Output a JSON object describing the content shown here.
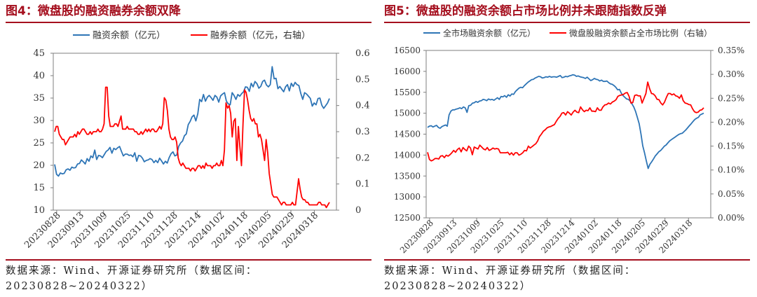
{
  "source": {
    "line1": "数据来源：Wind、开源证券研究所（数据区间：",
    "line2": "20230828~20240322）"
  },
  "chart_data": [
    {
      "type": "line",
      "title": "图4：微盘股的融资融券余额双降",
      "left_axis": {
        "min": 10,
        "max": 45,
        "ticks": [
          10,
          15,
          20,
          25,
          30,
          35,
          40,
          45
        ]
      },
      "right_axis": {
        "min": 0,
        "max": 0.6,
        "ticks": [
          "0",
          "0.1",
          "0.2",
          "0.3",
          "0.4",
          "0.5",
          "0.6"
        ]
      },
      "x_tick_labels": [
        "20230828",
        "20230913",
        "20231009",
        "20231025",
        "20231110",
        "20231128",
        "20231214",
        "20240102",
        "20240118",
        "20240205",
        "20240229",
        "20240318"
      ],
      "series": [
        {
          "name": "融资余额（亿元）",
          "color": "#2e75b6",
          "axis": "left",
          "values": [
            20.2,
            18.0,
            17.6,
            18.3,
            18.1,
            18.2,
            19.0,
            19.2,
            18.9,
            19.6,
            19.4,
            19.5,
            20.3,
            20.4,
            21.2,
            20.8,
            20.3,
            21.5,
            20.9,
            22.1,
            21.7,
            23.4,
            21.3,
            22.2,
            22.1,
            21.7,
            22.4,
            23.1,
            23.4,
            24.0,
            22.7,
            23.8,
            23.5,
            23.9,
            24.2,
            23.1,
            22.1,
            22.5,
            22.5,
            22.2,
            22.3,
            21.9,
            22.8,
            20.9,
            22.2,
            22.1,
            21.6,
            20.8,
            21.1,
            21.2,
            21.5,
            21.3,
            20.6,
            21.1,
            20.6,
            21.6,
            21.0,
            20.3,
            20.9,
            20.5,
            21.7,
            22.6,
            23.0,
            22.1,
            22.3,
            24.2,
            25.0,
            25.4,
            26.6,
            27.0,
            29.1,
            29.8,
            30.8,
            31.2,
            29.9,
            31.5,
            34.7,
            34.2,
            35.8,
            34.3,
            35.2,
            35.6,
            35.1,
            34.5,
            35.6,
            35.2,
            34.1,
            35.5,
            35.9,
            36.2,
            34.3,
            33.7,
            33.5,
            36.2,
            35.6,
            34.7,
            35.8,
            35.4,
            36.0,
            36.4,
            37.5,
            37.4,
            36.5,
            38.3,
            37.5,
            38.7,
            38.2,
            37.2,
            37.6,
            38.7,
            39.0,
            37.9,
            37.5,
            38.0,
            42.0,
            39.3,
            39.4,
            37.1,
            37.6,
            37.0,
            36.4,
            37.5,
            38.0,
            36.6,
            38.3,
            37.6,
            38.5,
            38.0,
            37.8,
            36.0,
            34.7,
            36.2,
            35.9,
            35.4,
            34.9,
            33.2,
            33.9,
            33.5,
            34.9,
            35.0,
            33.4,
            32.7,
            33.3,
            33.9,
            34.9
          ]
        },
        {
          "name": "融券余额（亿元，右轴）",
          "color": "#ff0000",
          "axis": "right",
          "values": [
            0.3,
            0.32,
            0.32,
            0.29,
            0.28,
            0.27,
            0.27,
            0.25,
            0.26,
            0.27,
            0.28,
            0.28,
            0.28,
            0.29,
            0.28,
            0.3,
            0.29,
            0.3,
            0.31,
            0.31,
            0.3,
            0.29,
            0.29,
            0.3,
            0.29,
            0.3,
            0.3,
            0.3,
            0.31,
            0.3,
            0.3,
            0.31,
            0.33,
            0.47,
            0.47,
            0.36,
            0.32,
            0.32,
            0.32,
            0.33,
            0.33,
            0.32,
            0.34,
            0.36,
            0.31,
            0.31,
            0.31,
            0.32,
            0.31,
            0.31,
            0.31,
            0.31,
            0.3,
            0.3,
            0.29,
            0.29,
            0.3,
            0.29,
            0.3,
            0.31,
            0.3,
            0.31,
            0.3,
            0.31,
            0.31,
            0.3,
            0.3,
            0.31,
            0.32,
            0.31,
            0.33,
            0.43,
            0.42,
            0.38,
            0.31,
            0.28,
            0.27,
            0.27,
            0.28,
            0.26,
            0.2,
            0.18,
            0.17,
            0.18,
            0.17,
            0.16,
            0.16,
            0.16,
            0.15,
            0.16,
            0.16,
            0.15,
            0.16,
            0.17,
            0.17,
            0.16,
            0.17,
            0.16,
            0.18,
            0.17,
            0.17,
            0.17,
            0.16,
            0.17,
            0.17,
            0.18,
            0.17,
            0.17,
            0.19,
            0.17,
            0.23,
            0.41,
            0.39,
            0.4,
            0.37,
            0.28,
            0.34,
            0.35,
            0.19,
            0.32,
            0.24,
            0.17,
            0.33,
            0.46,
            0.45,
            0.42,
            0.38,
            0.35,
            0.34,
            0.35,
            0.33,
            0.33,
            0.28,
            0.29,
            0.27,
            0.23,
            0.19,
            0.27,
            0.22,
            0.14,
            0.1,
            0.06,
            0.05,
            0.05,
            0.05,
            0.04,
            0.03,
            0.02,
            0.03,
            0.03,
            0.02,
            0.02,
            0.02,
            0.02,
            0.03,
            0.02,
            0.02,
            0.07,
            0.12,
            0.08,
            0.05,
            0.04,
            0.04,
            0.03,
            0.03,
            0.02,
            0.02,
            0.02,
            0.02,
            0.02,
            0.02,
            0.03,
            0.03,
            0.02,
            0.02,
            0.02,
            0.01,
            0.02,
            0.03
          ]
        }
      ]
    },
    {
      "type": "line",
      "title": "图5：微盘股的融资余额占市场比例并未跟随指数反弹",
      "left_axis": {
        "min": 12500,
        "max": 16500,
        "ticks": [
          12500,
          13000,
          13500,
          14000,
          14500,
          15000,
          15500,
          16000,
          16500
        ]
      },
      "right_axis": {
        "min": 0,
        "max": 0.35,
        "ticks": [
          "0.00%",
          "0.05%",
          "0.10%",
          "0.15%",
          "0.20%",
          "0.25%",
          "0.30%",
          "0.35%"
        ]
      },
      "x_tick_labels": [
        "20230828",
        "20230913",
        "20231009",
        "20231025",
        "20231110",
        "20231128",
        "20231214",
        "20240102",
        "20240118",
        "20240205",
        "20240229",
        "20240318"
      ],
      "series": [
        {
          "name": "全市场融资余额（亿元）",
          "color": "#2e75b6",
          "axis": "left",
          "values": [
            14660,
            14690,
            14700,
            14670,
            14690,
            14710,
            14660,
            14640,
            14680,
            14700,
            14720,
            14690,
            14960,
            15050,
            15080,
            15080,
            15100,
            15110,
            15130,
            15110,
            15150,
            15130,
            15020,
            15180,
            15190,
            15240,
            15250,
            15280,
            15260,
            15290,
            15300,
            15330,
            15320,
            15300,
            15340,
            15320,
            15330,
            15310,
            15340,
            15370,
            15330,
            15400,
            15390,
            15420,
            15380,
            15440,
            15410,
            15460,
            15450,
            15520,
            15560,
            15600,
            15620,
            15610,
            15660,
            15700,
            15740,
            15770,
            15800,
            15810,
            15840,
            15860,
            15880,
            15870,
            15840,
            15850,
            15870,
            15860,
            15880,
            15860,
            15870,
            15870,
            15860,
            15880,
            15900,
            15850,
            15860,
            15880,
            15870,
            15890,
            15900,
            15920,
            15910,
            15880,
            15890,
            15870,
            15860,
            15850,
            15830,
            15860,
            15820,
            15780,
            15800,
            15830,
            15810,
            15800,
            15770,
            15790,
            15760,
            15760,
            15770,
            15730,
            15700,
            15690,
            15660,
            15620,
            15560,
            15570,
            15480,
            15420,
            15380,
            15340,
            15330,
            15290,
            15220,
            15150,
            15040,
            14900,
            14750,
            14500,
            14220,
            14050,
            13860,
            13680,
            13780,
            13840,
            13910,
            13980,
            14030,
            14080,
            14110,
            14160,
            14210,
            14240,
            14290,
            14340,
            14370,
            14400,
            14430,
            14460,
            14490,
            14510,
            14520,
            14560,
            14600,
            14650,
            14700,
            14750,
            14800,
            14850,
            14880,
            14900,
            14960,
            14980,
            15000
          ]
        },
        {
          "name": "微盘股融资余额占全市场比例（右轴）",
          "color": "#ff0000",
          "axis": "right",
          "values": [
            0.137,
            0.122,
            0.119,
            0.121,
            0.124,
            0.124,
            0.123,
            0.129,
            0.13,
            0.126,
            0.131,
            0.129,
            0.132,
            0.136,
            0.141,
            0.137,
            0.143,
            0.146,
            0.138,
            0.147,
            0.143,
            0.14,
            0.15,
            0.146,
            0.132,
            0.148,
            0.146,
            0.144,
            0.152,
            0.148,
            0.144,
            0.142,
            0.147,
            0.141,
            0.143,
            0.146,
            0.144,
            0.145,
            0.144,
            0.136,
            0.136,
            0.136,
            0.136,
            0.137,
            0.132,
            0.136,
            0.131,
            0.136,
            0.136,
            0.131,
            0.133,
            0.136,
            0.141,
            0.14,
            0.15,
            0.146,
            0.149,
            0.152,
            0.155,
            0.161,
            0.17,
            0.175,
            0.181,
            0.184,
            0.188,
            0.19,
            0.191,
            0.193,
            0.195,
            0.202,
            0.208,
            0.212,
            0.219,
            0.22,
            0.215,
            0.222,
            0.219,
            0.215,
            0.221,
            0.225,
            0.221,
            0.22,
            0.232,
            0.226,
            0.222,
            0.225,
            0.224,
            0.23,
            0.223,
            0.223,
            0.222,
            0.23,
            0.225,
            0.225,
            0.232,
            0.236,
            0.237,
            0.24,
            0.238,
            0.242,
            0.244,
            0.247,
            0.254,
            0.256,
            0.257,
            0.258,
            0.261,
            0.262,
            0.254,
            0.24,
            0.241,
            0.256,
            0.257,
            0.255,
            0.255,
            0.24,
            0.25,
            0.26,
            0.284,
            0.27,
            0.26,
            0.259,
            0.255,
            0.248,
            0.247,
            0.24,
            0.236,
            0.242,
            0.252,
            0.26,
            0.26,
            0.257,
            0.259,
            0.255,
            0.254,
            0.25,
            0.257,
            0.245,
            0.24,
            0.239,
            0.237,
            0.236,
            0.228,
            0.222,
            0.22,
            0.221,
            0.225,
            0.226,
            0.23
          ]
        }
      ]
    }
  ]
}
